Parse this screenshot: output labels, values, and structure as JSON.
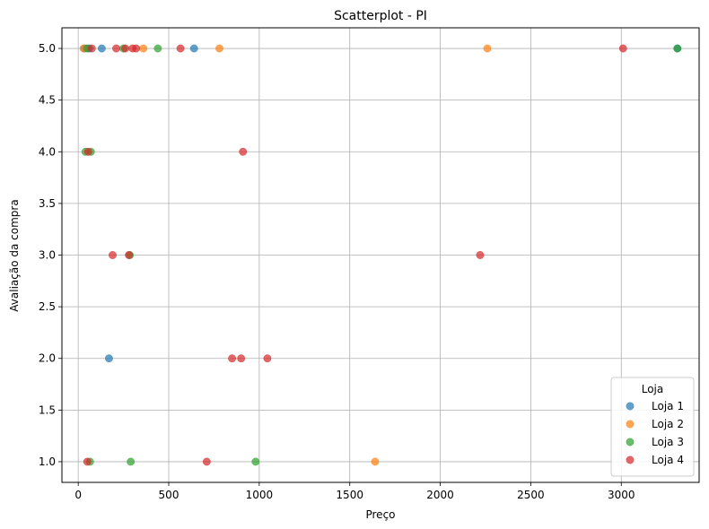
{
  "chart_data": {
    "type": "scatter",
    "title": "Scatterplot - PI",
    "xlabel": "Preço",
    "ylabel": "Avaliação da compra",
    "xlim": [
      -90,
      3430
    ],
    "ylim": [
      0.8,
      5.2
    ],
    "xticks": [
      0,
      500,
      1000,
      1500,
      2000,
      2500,
      3000
    ],
    "xtick_labels": [
      "0",
      "500",
      "1000",
      "1500",
      "2000",
      "2500",
      "3000"
    ],
    "yticks": [
      1.0,
      1.5,
      2.0,
      2.5,
      3.0,
      3.5,
      4.0,
      4.5,
      5.0
    ],
    "ytick_labels": [
      "1.0",
      "1.5",
      "2.0",
      "2.5",
      "3.0",
      "3.5",
      "4.0",
      "4.5",
      "5.0"
    ],
    "grid": true,
    "legend": {
      "title": "Loja",
      "placement": "bottom-right"
    },
    "series": [
      {
        "name": "Loja 1",
        "color": "#1f77b4",
        "points": [
          {
            "x": 35,
            "y": 5
          },
          {
            "x": 60,
            "y": 5
          },
          {
            "x": 130,
            "y": 5
          },
          {
            "x": 640,
            "y": 5
          },
          {
            "x": 3310,
            "y": 5
          },
          {
            "x": 170,
            "y": 2
          }
        ]
      },
      {
        "name": "Loja 2",
        "color": "#ff7f0e",
        "points": [
          {
            "x": 30,
            "y": 5
          },
          {
            "x": 360,
            "y": 5
          },
          {
            "x": 780,
            "y": 5
          },
          {
            "x": 2260,
            "y": 5
          },
          {
            "x": 1640,
            "y": 1
          }
        ]
      },
      {
        "name": "Loja 3",
        "color": "#2ca02c",
        "points": [
          {
            "x": 50,
            "y": 5
          },
          {
            "x": 250,
            "y": 5
          },
          {
            "x": 440,
            "y": 5
          },
          {
            "x": 3310,
            "y": 5
          },
          {
            "x": 40,
            "y": 4
          },
          {
            "x": 70,
            "y": 4
          },
          {
            "x": 285,
            "y": 3
          },
          {
            "x": 65,
            "y": 1
          },
          {
            "x": 290,
            "y": 1
          },
          {
            "x": 980,
            "y": 1
          }
        ]
      },
      {
        "name": "Loja 4",
        "color": "#d62728",
        "points": [
          {
            "x": 75,
            "y": 5
          },
          {
            "x": 210,
            "y": 5
          },
          {
            "x": 260,
            "y": 5
          },
          {
            "x": 300,
            "y": 5
          },
          {
            "x": 320,
            "y": 5
          },
          {
            "x": 565,
            "y": 5
          },
          {
            "x": 3010,
            "y": 5
          },
          {
            "x": 55,
            "y": 4
          },
          {
            "x": 910,
            "y": 4
          },
          {
            "x": 190,
            "y": 3
          },
          {
            "x": 280,
            "y": 3
          },
          {
            "x": 2220,
            "y": 3
          },
          {
            "x": 850,
            "y": 2
          },
          {
            "x": 900,
            "y": 2
          },
          {
            "x": 1045,
            "y": 2
          },
          {
            "x": 50,
            "y": 1
          },
          {
            "x": 710,
            "y": 1
          }
        ]
      }
    ]
  }
}
